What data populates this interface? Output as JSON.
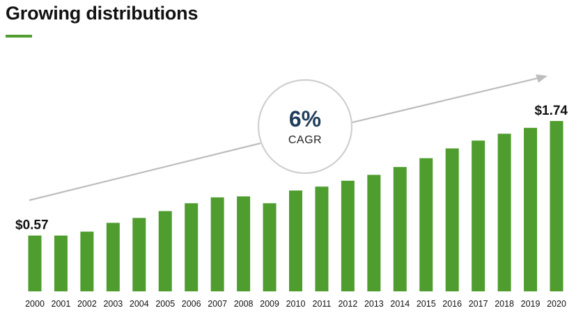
{
  "colors": {
    "bar": "#4f9d2f",
    "accent": "#4f9d2f",
    "arrow": "#bdbdbd",
    "circle": "#cfcfcf"
  },
  "cagr": {
    "value": "6%",
    "label": "CAGR"
  },
  "chart_data": {
    "type": "bar",
    "title": "Growing distributions",
    "xlabel": "",
    "ylabel": "",
    "grid": false,
    "legend": "none",
    "ylim": [
      0,
      1.8
    ],
    "categories": [
      "2000",
      "2001",
      "2002",
      "2003",
      "2004",
      "2005",
      "2006",
      "2007",
      "2008",
      "2009",
      "2010",
      "2011",
      "2012",
      "2013",
      "2014",
      "2015",
      "2016",
      "2017",
      "2018",
      "2019",
      "2020"
    ],
    "values": [
      0.57,
      0.57,
      0.61,
      0.7,
      0.75,
      0.82,
      0.9,
      0.96,
      0.97,
      0.9,
      1.03,
      1.07,
      1.13,
      1.19,
      1.27,
      1.36,
      1.46,
      1.54,
      1.61,
      1.67,
      1.74
    ],
    "data_labels": [
      {
        "category": "2000",
        "text": "$0.57"
      },
      {
        "category": "2020",
        "text": "$1.74"
      }
    ]
  }
}
